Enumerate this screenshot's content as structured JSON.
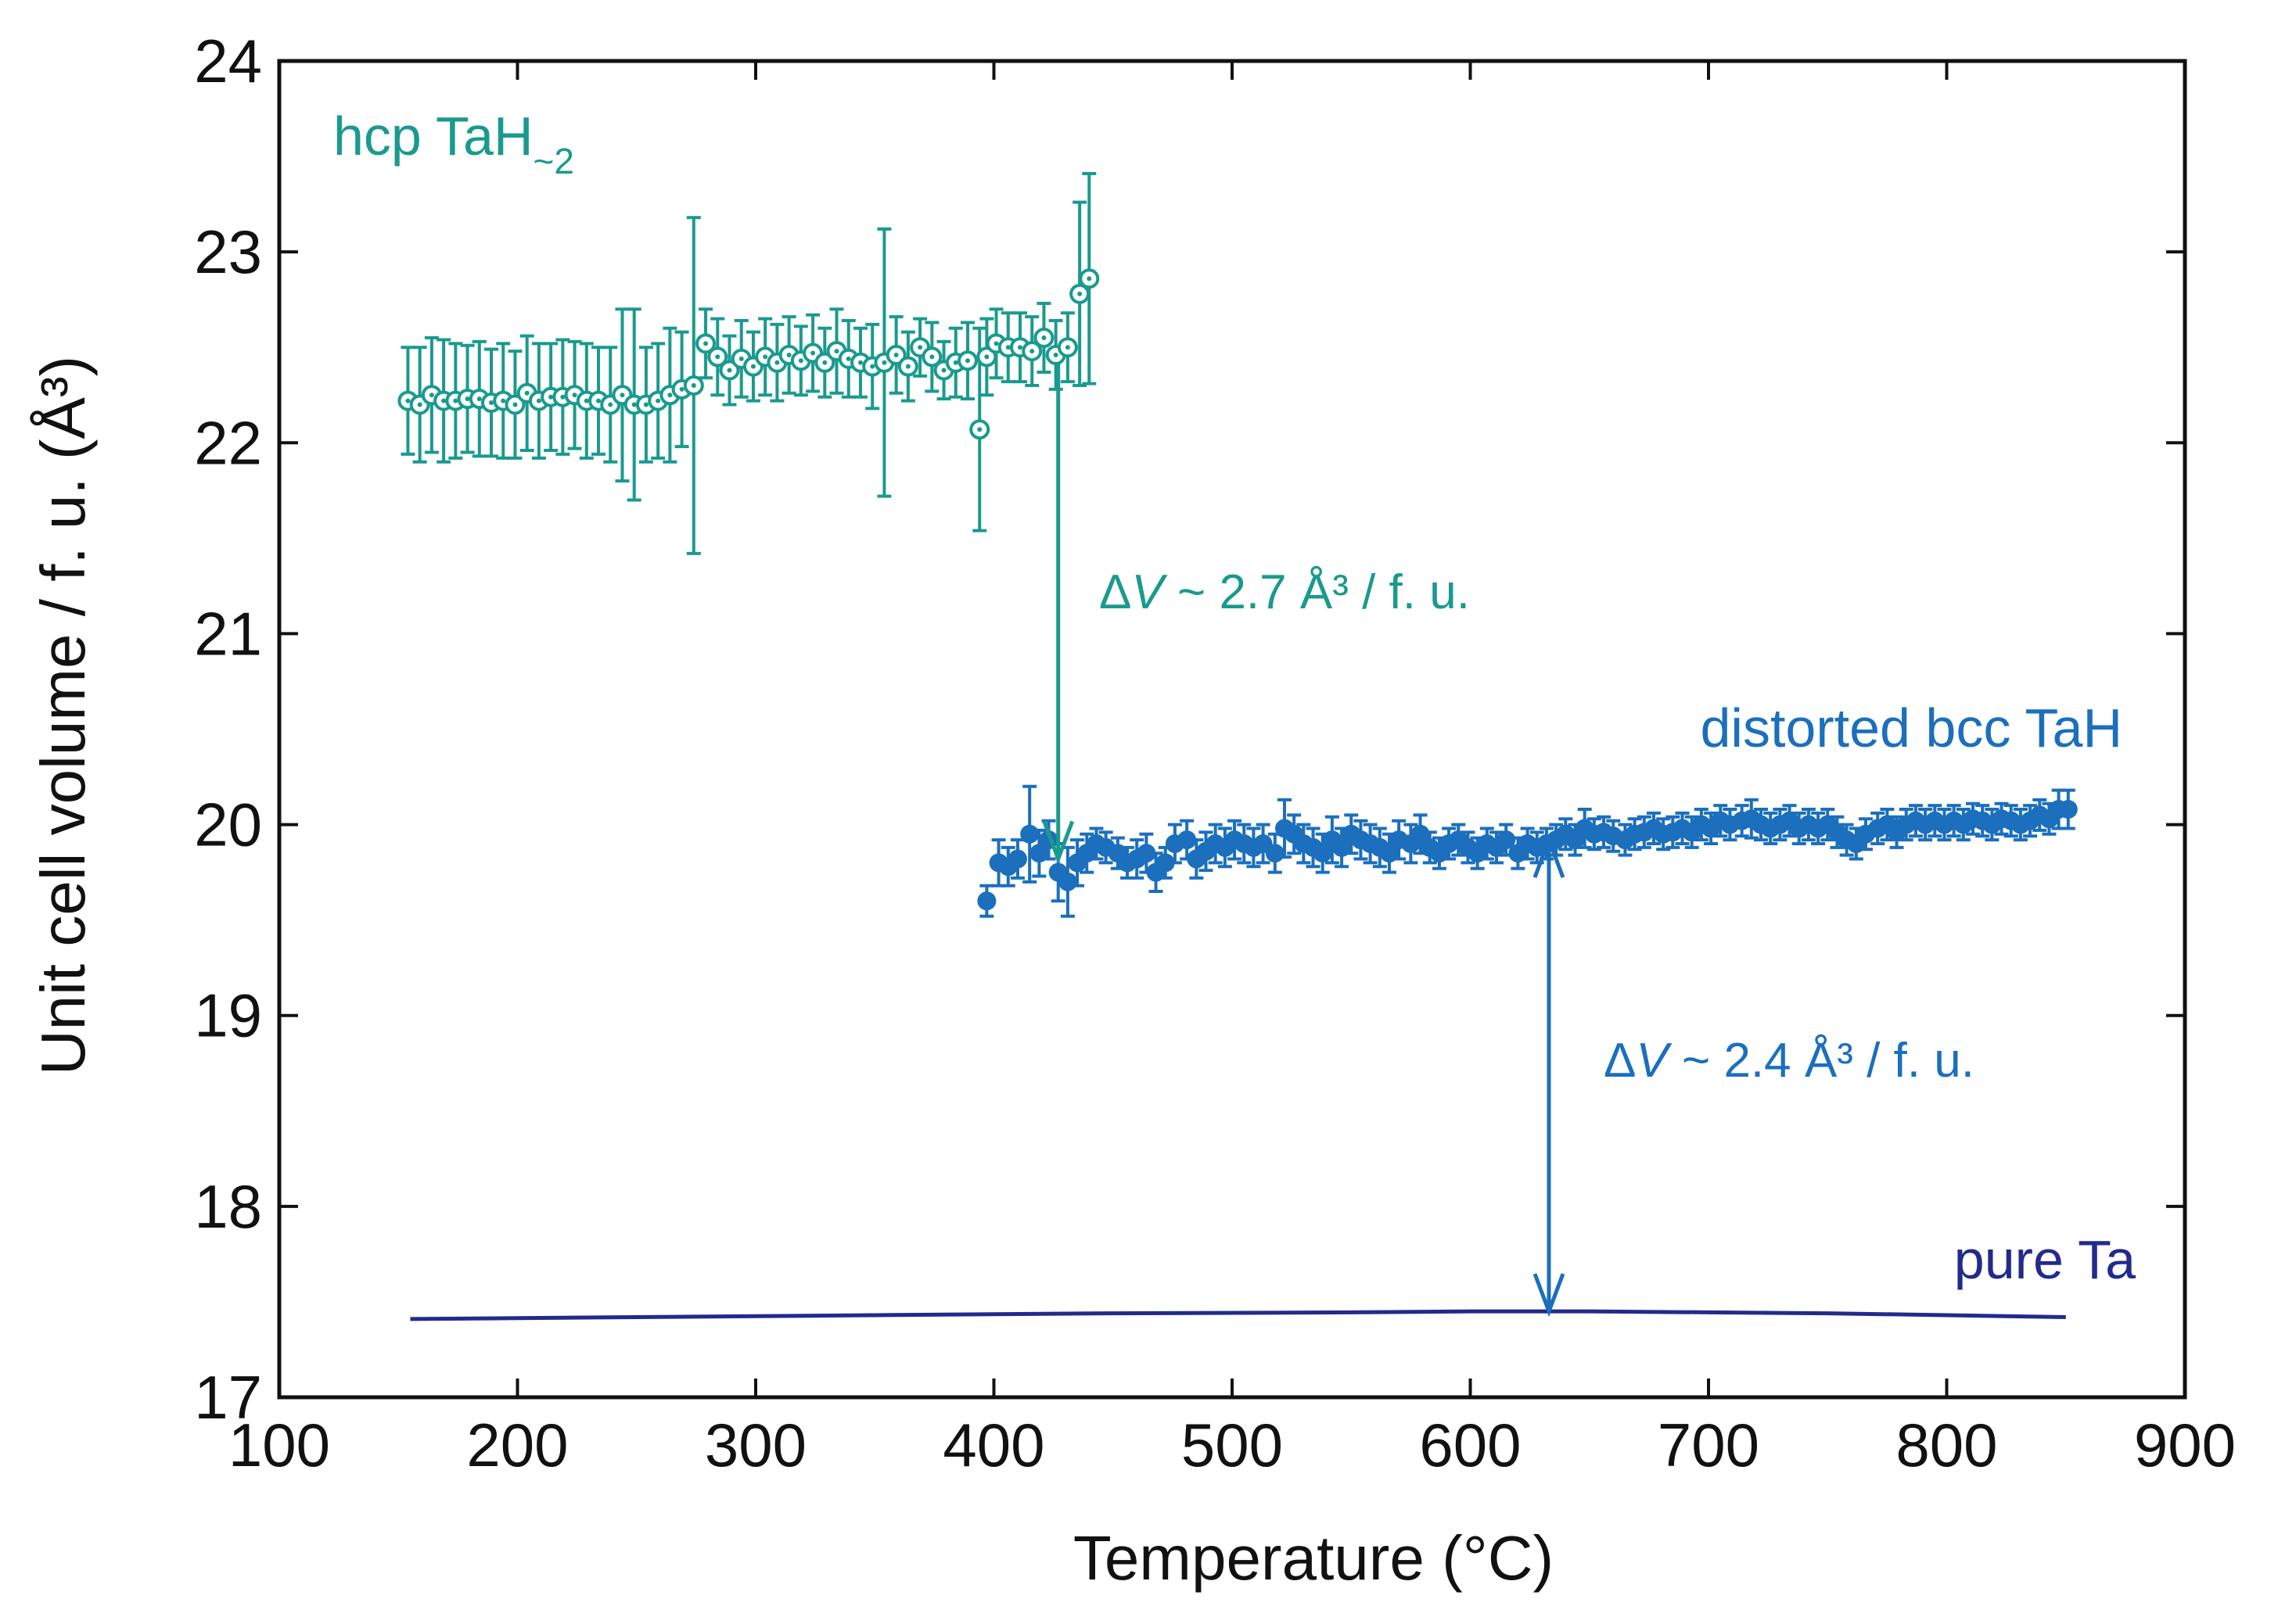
{
  "chart_data": {
    "type": "scatter",
    "xlabel": "Temperature (°C)",
    "ylabel": "Unit cell volume / f. u. (Å³)",
    "xlim": [
      100,
      900
    ],
    "ylim": [
      17,
      24
    ],
    "xticks": [
      "100",
      "200",
      "300",
      "400",
      "500",
      "600",
      "700",
      "800",
      "900"
    ],
    "yticks": [
      "17",
      "18",
      "19",
      "20",
      "21",
      "22",
      "23",
      "24"
    ],
    "colors": {
      "hcp": "#1a9a8e",
      "bcc": "#1b6fbd",
      "ta": "#232a8c",
      "axis": "#111111"
    },
    "series": [
      {
        "name": "hcp TaH~2",
        "label_main": "hcp TaH",
        "label_sub": "~2",
        "marker": "open-circle-dot",
        "x": [
          154,
          159,
          164,
          169,
          174,
          179,
          184,
          189,
          194,
          199,
          204,
          209,
          214,
          219,
          224,
          229,
          234,
          239,
          244,
          249,
          254,
          259,
          264,
          269,
          274,
          279,
          284,
          289,
          294,
          299,
          304,
          309,
          314,
          319,
          324,
          329,
          334,
          339,
          344,
          349,
          354,
          359,
          364,
          369,
          374,
          379,
          384,
          389,
          394,
          397,
          401,
          406,
          411,
          416,
          421,
          426,
          431,
          436,
          440
        ],
        "y": [
          22.22,
          22.2,
          22.25,
          22.22,
          22.22,
          22.23,
          22.23,
          22.21,
          22.22,
          22.2,
          22.26,
          22.22,
          22.24,
          22.24,
          22.25,
          22.22,
          22.22,
          22.2,
          22.25,
          22.2,
          22.2,
          22.22,
          22.25,
          22.28,
          22.3,
          22.52,
          22.45,
          22.38,
          22.44,
          22.4,
          22.45,
          22.42,
          22.46,
          22.43,
          22.47,
          22.42,
          22.48,
          22.44,
          22.42,
          22.4,
          22.42,
          22.46,
          22.4,
          22.5,
          22.45,
          22.38,
          22.42,
          22.43,
          22.07,
          22.45,
          22.52,
          22.5,
          22.5,
          22.48,
          22.55,
          22.46,
          22.5,
          22.78,
          22.86
        ],
        "yerr": [
          0.28,
          0.3,
          0.3,
          0.32,
          0.3,
          0.28,
          0.3,
          0.28,
          0.3,
          0.28,
          0.3,
          0.3,
          0.28,
          0.3,
          0.28,
          0.3,
          0.28,
          0.3,
          0.45,
          0.5,
          0.3,
          0.3,
          0.35,
          0.3,
          0.88,
          0.18,
          0.2,
          0.18,
          0.2,
          0.18,
          0.2,
          0.2,
          0.2,
          0.18,
          0.2,
          0.18,
          0.22,
          0.2,
          0.18,
          0.22,
          0.7,
          0.2,
          0.18,
          0.15,
          0.18,
          0.15,
          0.18,
          0.2,
          0.53,
          0.2,
          0.18,
          0.18,
          0.18,
          0.18,
          0.18,
          0.18,
          0.18,
          0.48,
          0.55
        ]
      },
      {
        "name": "distorted bcc TaH",
        "marker": "filled-circle",
        "x": [
          397,
          402,
          406,
          410,
          415,
          419,
          423,
          427,
          431,
          435,
          439,
          443,
          447,
          452,
          456,
          460,
          464,
          468,
          472,
          476,
          481,
          485,
          489,
          493,
          497,
          501,
          505,
          509,
          513,
          518,
          522,
          526,
          530,
          534,
          538,
          542,
          546,
          550,
          554,
          558,
          562,
          566,
          570,
          575,
          579,
          583,
          587,
          591,
          595,
          599,
          603,
          607,
          611,
          615,
          620,
          624,
          628,
          632,
          636,
          640,
          644,
          648,
          652,
          656,
          660,
          665,
          669,
          673,
          677,
          681,
          685,
          689,
          693,
          697,
          701,
          705,
          709,
          714,
          718,
          722,
          726,
          730,
          734,
          738,
          742,
          746,
          750,
          754,
          758,
          762,
          766,
          771,
          775,
          779,
          783,
          787,
          791,
          795,
          799,
          803,
          807,
          811,
          815,
          819,
          823,
          827,
          831,
          835,
          839,
          843,
          847,
          851
        ],
        "y": [
          19.6,
          19.8,
          19.78,
          19.82,
          19.95,
          19.85,
          19.92,
          19.75,
          19.7,
          19.8,
          19.85,
          19.9,
          19.88,
          19.85,
          19.8,
          19.82,
          19.85,
          19.75,
          19.8,
          19.9,
          19.92,
          19.82,
          19.86,
          19.9,
          19.88,
          19.92,
          19.9,
          19.88,
          19.9,
          19.85,
          19.98,
          19.95,
          19.9,
          19.88,
          19.85,
          19.92,
          19.88,
          19.95,
          19.92,
          19.9,
          19.88,
          19.85,
          19.92,
          19.9,
          19.95,
          19.88,
          19.85,
          19.9,
          19.92,
          19.88,
          19.85,
          19.9,
          19.88,
          19.92,
          19.85,
          19.9,
          19.88,
          19.9,
          19.92,
          19.95,
          19.92,
          19.98,
          19.95,
          19.96,
          19.94,
          19.92,
          19.95,
          19.96,
          19.98,
          19.95,
          19.96,
          19.98,
          19.96,
          20.0,
          19.98,
          20.02,
          20.0,
          20.02,
          20.03,
          20.0,
          19.98,
          20.0,
          20.02,
          19.98,
          20.0,
          19.98,
          20.0,
          19.96,
          19.92,
          19.9,
          19.95,
          19.98,
          20.0,
          19.96,
          20.0,
          20.02,
          20.0,
          20.02,
          20.0,
          20.02,
          20.0,
          20.03,
          20.02,
          20.0,
          20.03,
          20.02,
          20.0,
          20.02,
          20.05,
          20.03,
          20.08,
          20.08
        ],
        "yerr": [
          0.08,
          0.12,
          0.1,
          0.1,
          0.25,
          0.12,
          0.1,
          0.15,
          0.18,
          0.12,
          0.1,
          0.08,
          0.08,
          0.08,
          0.08,
          0.1,
          0.1,
          0.1,
          0.08,
          0.1,
          0.1,
          0.1,
          0.1,
          0.1,
          0.1,
          0.1,
          0.1,
          0.1,
          0.1,
          0.1,
          0.15,
          0.1,
          0.1,
          0.1,
          0.1,
          0.12,
          0.1,
          0.1,
          0.1,
          0.1,
          0.1,
          0.1,
          0.1,
          0.1,
          0.1,
          0.08,
          0.08,
          0.08,
          0.08,
          0.08,
          0.08,
          0.08,
          0.08,
          0.08,
          0.08,
          0.08,
          0.08,
          0.08,
          0.08,
          0.08,
          0.08,
          0.1,
          0.08,
          0.08,
          0.08,
          0.08,
          0.08,
          0.08,
          0.08,
          0.08,
          0.08,
          0.08,
          0.08,
          0.08,
          0.08,
          0.08,
          0.08,
          0.08,
          0.1,
          0.08,
          0.08,
          0.08,
          0.08,
          0.08,
          0.08,
          0.08,
          0.08,
          0.08,
          0.08,
          0.08,
          0.08,
          0.08,
          0.08,
          0.08,
          0.08,
          0.08,
          0.08,
          0.08,
          0.08,
          0.08,
          0.08,
          0.08,
          0.08,
          0.08,
          0.08,
          0.08,
          0.08,
          0.08,
          0.08,
          0.08,
          0.1,
          0.1
        ]
      },
      {
        "name": "pure Ta",
        "marker": "line",
        "x": [
          155,
          250,
          350,
          450,
          550,
          600,
          650,
          700,
          750,
          800,
          850
        ],
        "y": [
          17.41,
          17.42,
          17.43,
          17.44,
          17.445,
          17.45,
          17.45,
          17.445,
          17.44,
          17.43,
          17.42
        ]
      }
    ],
    "annotations": [
      {
        "id": "dv1",
        "text_prefix": "Δ",
        "text_var": "V",
        "text_rest": " ~ 2.7 Å³ / f. u.",
        "arrow_x": 427,
        "arrow_from": 22.42,
        "arrow_to": 19.82,
        "style": "single",
        "color": "hcp"
      },
      {
        "id": "dv2",
        "text_prefix": "Δ",
        "text_var": "V",
        "text_rest": " ~ 2.4 Å³ / f. u.",
        "arrow_x": 633,
        "arrow_from": 19.92,
        "arrow_to": 17.45,
        "style": "double",
        "color": "bcc"
      }
    ]
  }
}
